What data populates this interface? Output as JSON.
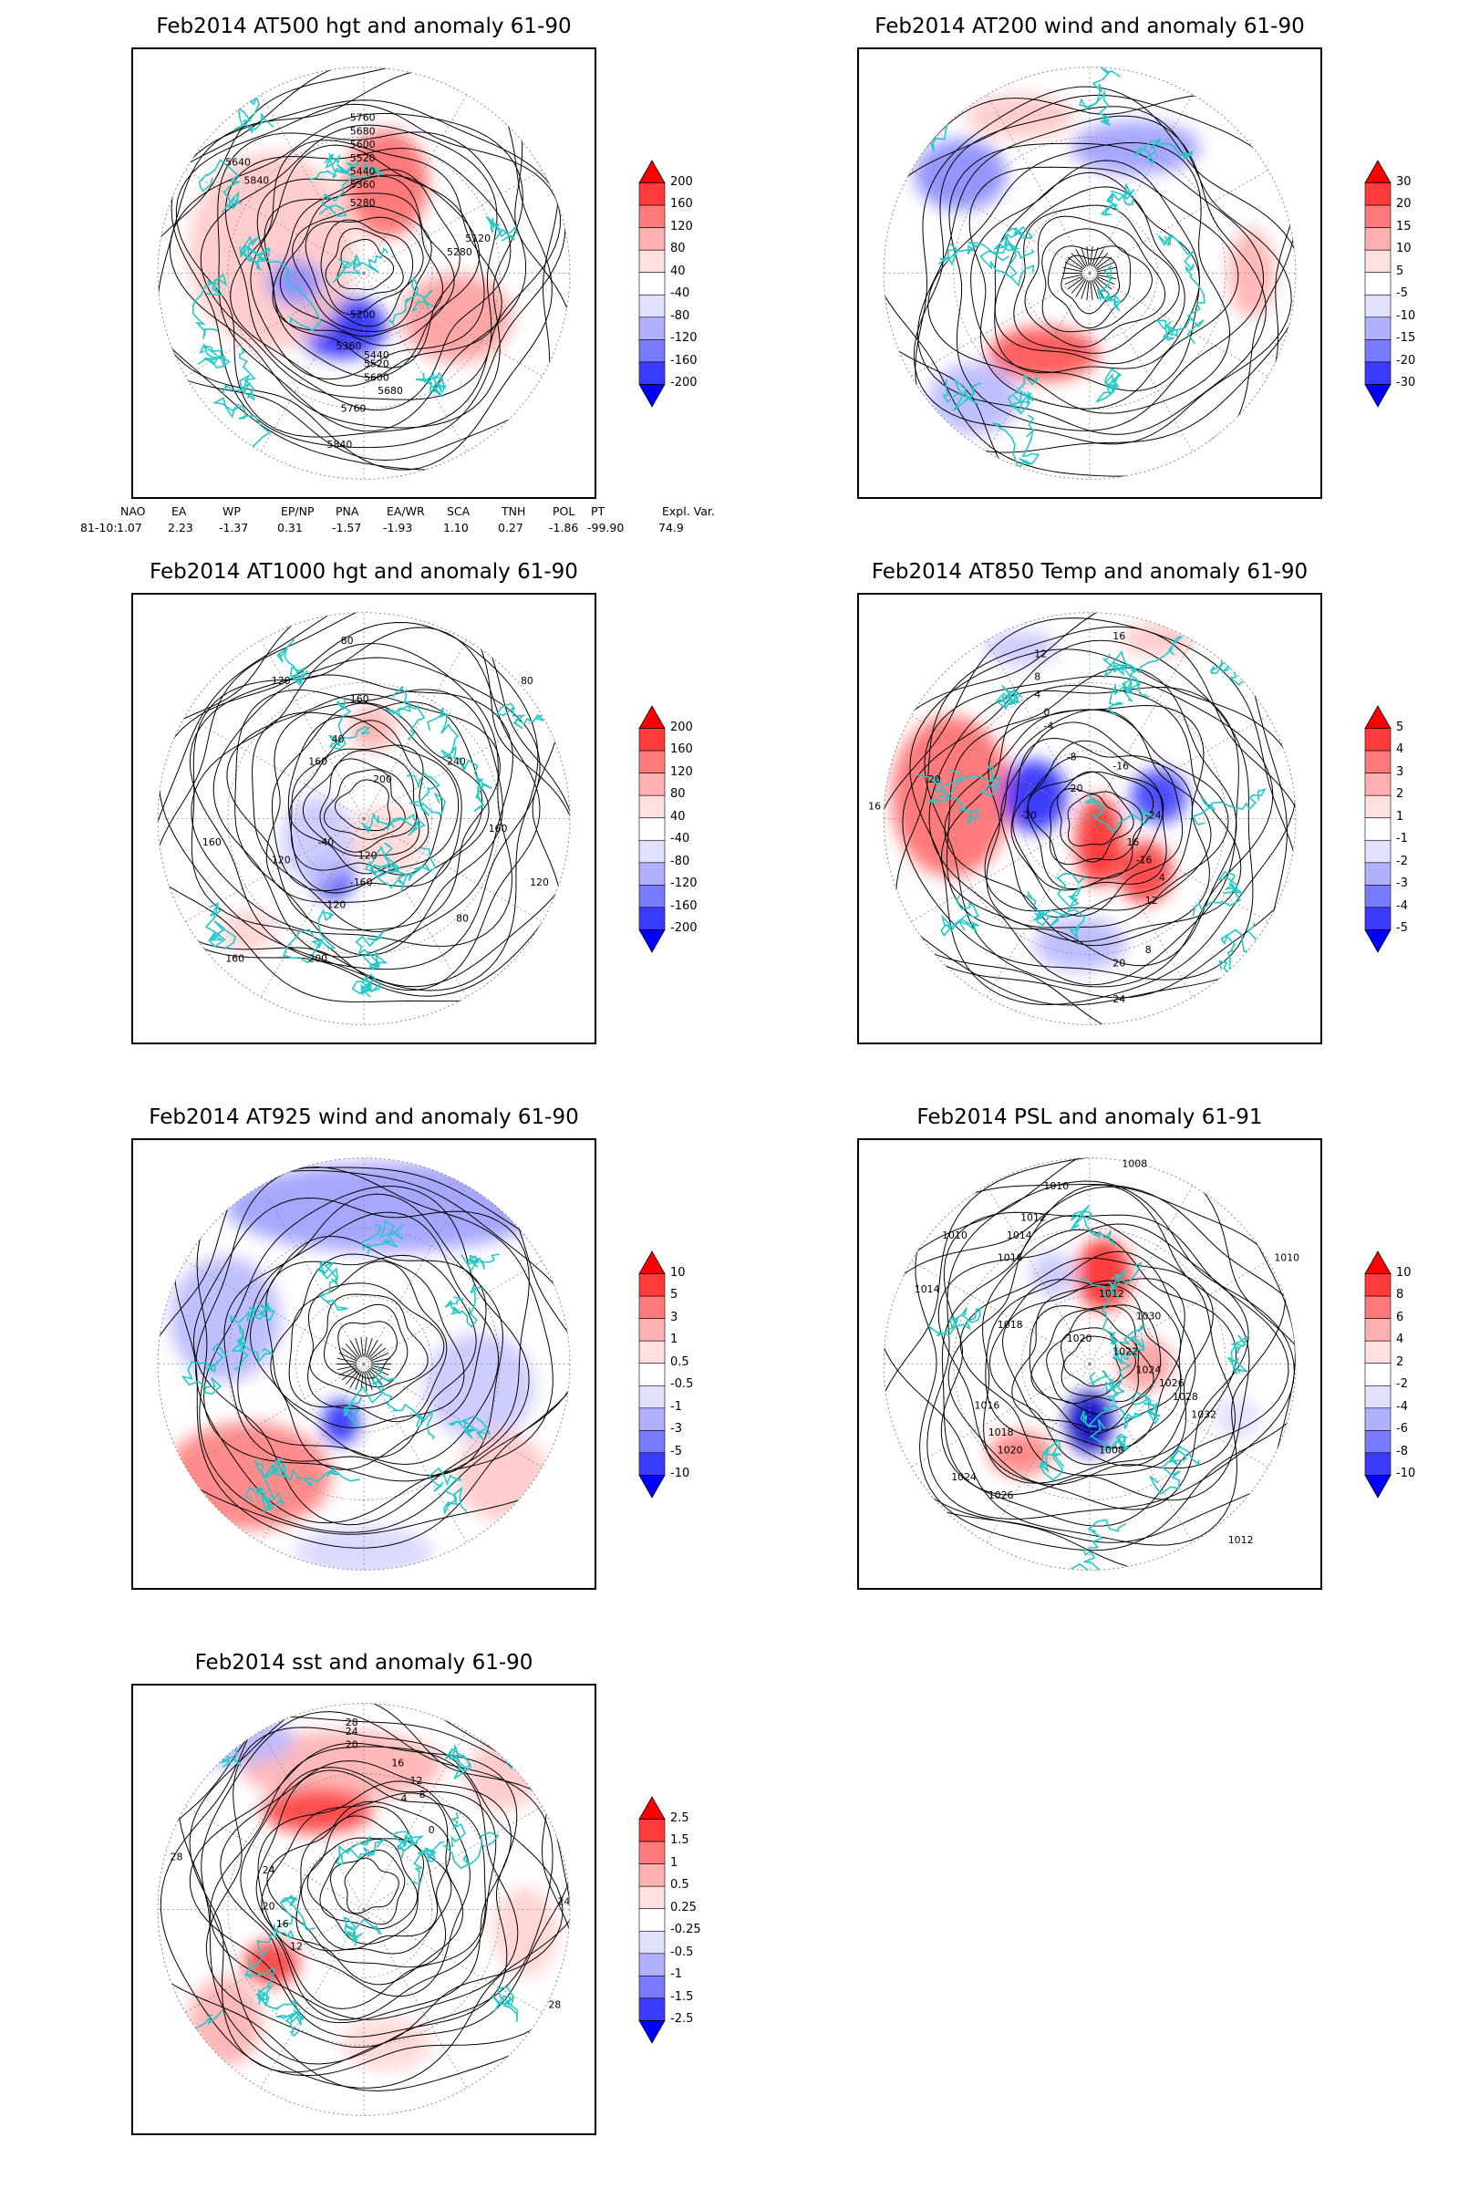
{
  "panels": [
    {
      "id": "at500",
      "title": "Feb2014 AT500 hgt and anomaly 61-90",
      "colorbar": [
        "200",
        "160",
        "120",
        "80",
        "40",
        "-40",
        "-80",
        "-120",
        "-160",
        "-200"
      ],
      "contour_labels": [
        "5760",
        "5680",
        "5600",
        "5520",
        "5440",
        "5360",
        "5280",
        "5200",
        "5120",
        "5640",
        "5840",
        "5840",
        "5760",
        "5680",
        "5600",
        "5520",
        "5440",
        "5360",
        "5280"
      ]
    },
    {
      "id": "at200",
      "title": "Feb2014 AT200 wind and anomaly 61-90",
      "colorbar": [
        "30",
        "20",
        "15",
        "10",
        "5",
        "-5",
        "-10",
        "-15",
        "-20",
        "-30"
      ],
      "contour_labels": []
    },
    {
      "id": "at1000",
      "title": "Feb2014 AT1000 hgt and anomaly 61-90",
      "colorbar": [
        "200",
        "160",
        "120",
        "80",
        "40",
        "-40",
        "-80",
        "-120",
        "-160",
        "-200"
      ],
      "contour_labels": [
        "80",
        "120",
        "160",
        "80",
        "160",
        "40",
        "200",
        "240",
        "160",
        "-40",
        "-120",
        "-160",
        "120",
        "200",
        "160",
        "80",
        "120",
        "160",
        "120"
      ]
    },
    {
      "id": "at850",
      "title": "Feb2014 AT850 Temp and anomaly 61-90",
      "colorbar": [
        "5",
        "4",
        "3",
        "2",
        "1",
        "-1",
        "-2",
        "-3",
        "-4",
        "-5"
      ],
      "contour_labels": [
        "16",
        "12",
        "8",
        "4",
        "0",
        "-4",
        "-8",
        "-16",
        "-20",
        "-24",
        "-20",
        "-16",
        "16",
        "12",
        "8",
        "20",
        "24",
        "20",
        "16",
        "4"
      ]
    },
    {
      "id": "at925",
      "title": "Feb2014 AT925 wind and anomaly 61-90",
      "colorbar": [
        "10",
        "5",
        "3",
        "1",
        "0.5",
        "-0.5",
        "-1",
        "-3",
        "-5",
        "-10"
      ],
      "contour_labels": []
    },
    {
      "id": "psl",
      "title": "Feb2014 PSL and anomaly 61-91",
      "colorbar": [
        "10",
        "8",
        "6",
        "4",
        "2",
        "-2",
        "-4",
        "-6",
        "-8",
        "-10"
      ],
      "contour_labels": [
        "1008",
        "1010",
        "1012",
        "1014",
        "1016",
        "1018",
        "1020",
        "1022",
        "1024",
        "1026",
        "1028",
        "1030",
        "1032",
        "1012",
        "1008",
        "1010",
        "1014",
        "1016",
        "1018",
        "1020",
        "1024",
        "1026",
        "1010",
        "1012"
      ]
    },
    {
      "id": "sst",
      "title": "Feb2014 sst and anomaly 61-90",
      "colorbar": [
        "2.5",
        "1.5",
        "1",
        "0.5",
        "0.25",
        "-0.25",
        "-0.5",
        "-1",
        "-1.5",
        "-2.5"
      ],
      "contour_labels": [
        "28",
        "24",
        "20",
        "16",
        "12",
        "8",
        "4",
        "0",
        "28",
        "24",
        "20",
        "16",
        "12",
        "24",
        "28"
      ]
    }
  ],
  "teleconnection": {
    "headers": [
      "NAO",
      "EA",
      "WP",
      "EP/NP",
      "PNA",
      "EA/WR",
      "SCA",
      "TNH",
      "POL",
      "PT",
      "Expl. Var."
    ],
    "row_label": "81-10:",
    "values": [
      "1.07",
      "2.23",
      "-1.37",
      "0.31",
      "-1.57",
      "-1.93",
      "1.10",
      "0.27",
      "-1.86",
      "-99.90",
      "74.9"
    ]
  }
}
